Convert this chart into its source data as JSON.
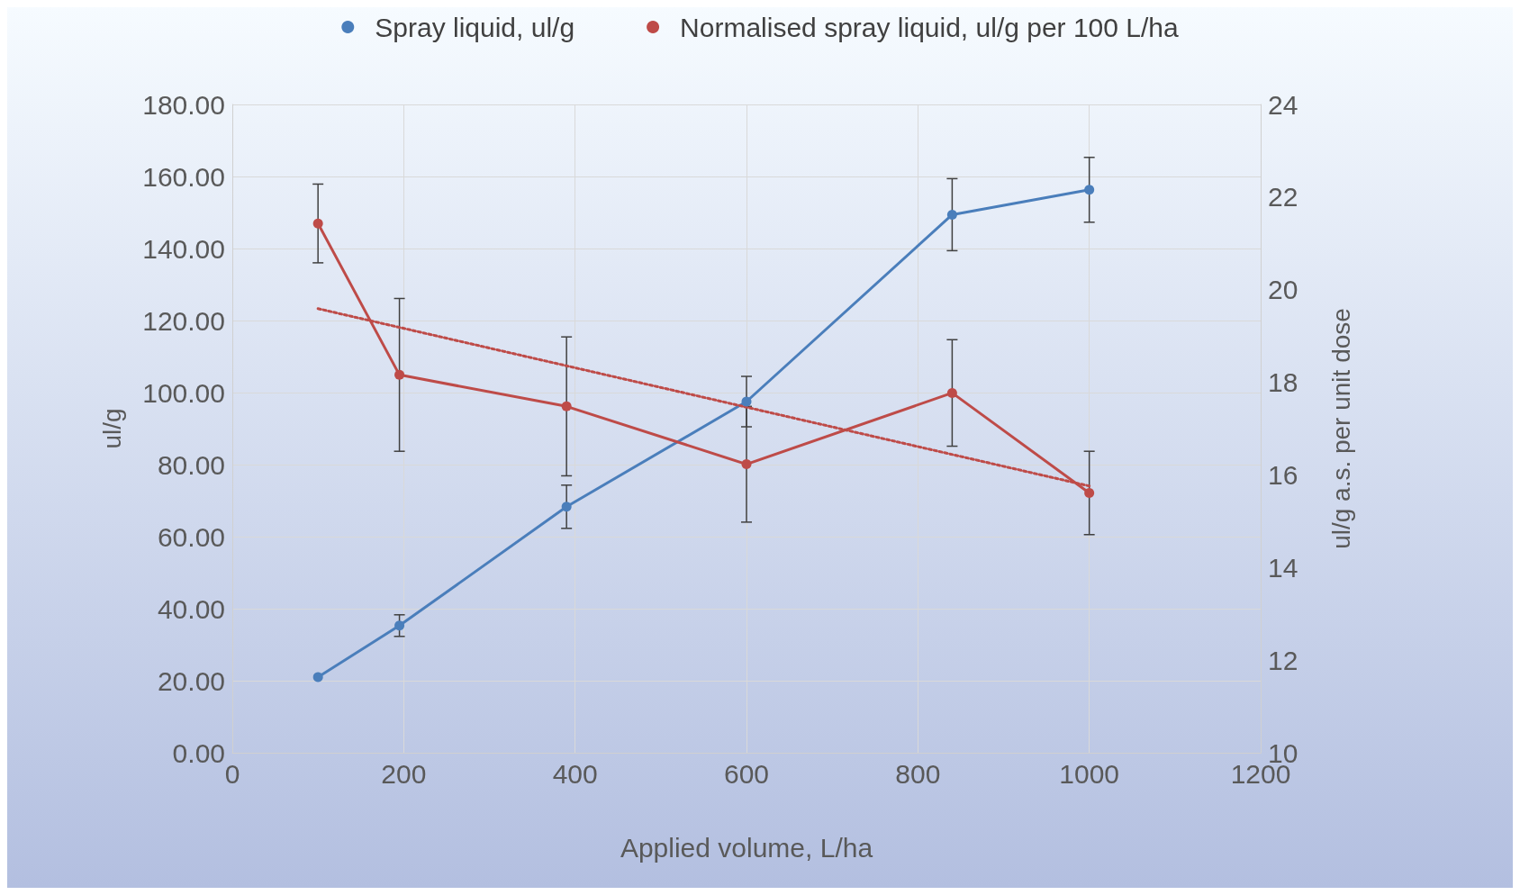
{
  "chart_data": {
    "type": "line",
    "xlabel": "Applied volume, L/ha",
    "ylabel": "ul/g",
    "y2label": "ul/g a.s. per unit dose",
    "x": [
      100,
      195,
      390,
      600,
      840,
      1000
    ],
    "series": [
      {
        "name": "Spray liquid, ul/g",
        "color": "#4a7ebb",
        "values": [
          21,
          35.3,
          68.3,
          97.5,
          149.4,
          156.3
        ],
        "errors": [
          null,
          3,
          6,
          7,
          10,
          9
        ]
      },
      {
        "name": "Normalised spray liquid, ul/g per 100 L/ha",
        "color": "#be4b48",
        "axis": "y2",
        "values": [
          21.43,
          18.16,
          17.48,
          16.23,
          17.77,
          15.61
        ],
        "errors": [
          0.85,
          1.65,
          1.5,
          1.25,
          1.15,
          0.9
        ]
      },
      {
        "type": "line",
        "color": "#be4b48",
        "axis": "y2",
        "x": [
          100,
          1000
        ],
        "values": [
          19.59,
          15.76
        ],
        "line_style": "dotted",
        "marker": "none"
      }
    ],
    "xlim": [
      0,
      1200
    ],
    "xticks": [
      0,
      200,
      400,
      600,
      800,
      1000,
      1200
    ],
    "ylim": [
      0,
      180
    ],
    "yticks": [
      {
        "value": 0,
        "label": "0.00"
      },
      {
        "value": 20,
        "label": "20.00"
      },
      {
        "value": 40,
        "label": "40.00"
      },
      {
        "value": 60,
        "label": "60.00"
      },
      {
        "value": 80,
        "label": "80.00"
      },
      {
        "value": 100,
        "label": "100.00"
      },
      {
        "value": 120,
        "label": "120.00"
      },
      {
        "value": 140,
        "label": "140.00"
      },
      {
        "value": 160,
        "label": "160.00"
      },
      {
        "value": 180,
        "label": "180.00"
      }
    ],
    "y2lim": [
      10,
      24
    ],
    "y2ticks": [
      10,
      12,
      14,
      16,
      18,
      20,
      22,
      24
    ],
    "grid": true,
    "legend": "top",
    "marker": "circle",
    "line_style": "solid"
  }
}
